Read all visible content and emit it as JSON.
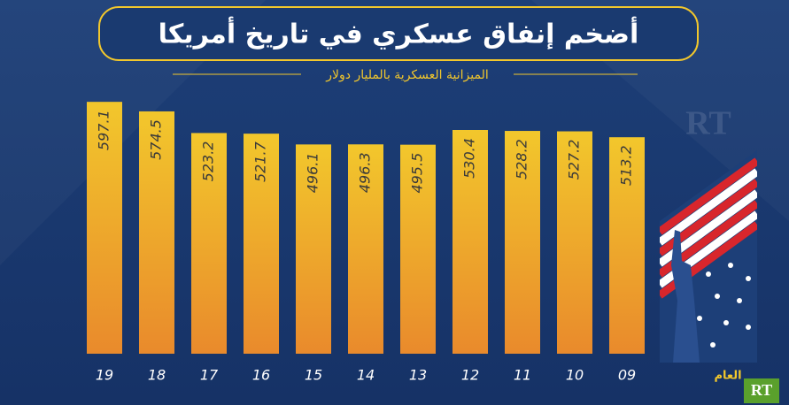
{
  "chart_data": {
    "type": "bar",
    "title": "أضخم إنفاق عسكري في تاريخ أمريكا",
    "subtitle": "الميزانية العسكرية بالمليار دولار",
    "x_label": "العام",
    "logo": "RT",
    "categories": [
      "19",
      "18",
      "17",
      "16",
      "15",
      "14",
      "13",
      "12",
      "11",
      "10",
      "09"
    ],
    "values": [
      597.1,
      574.5,
      523.2,
      521.7,
      496.1,
      496.3,
      495.5,
      530.4,
      528.2,
      527.2,
      513.2
    ],
    "color": "#f2c72c"
  }
}
